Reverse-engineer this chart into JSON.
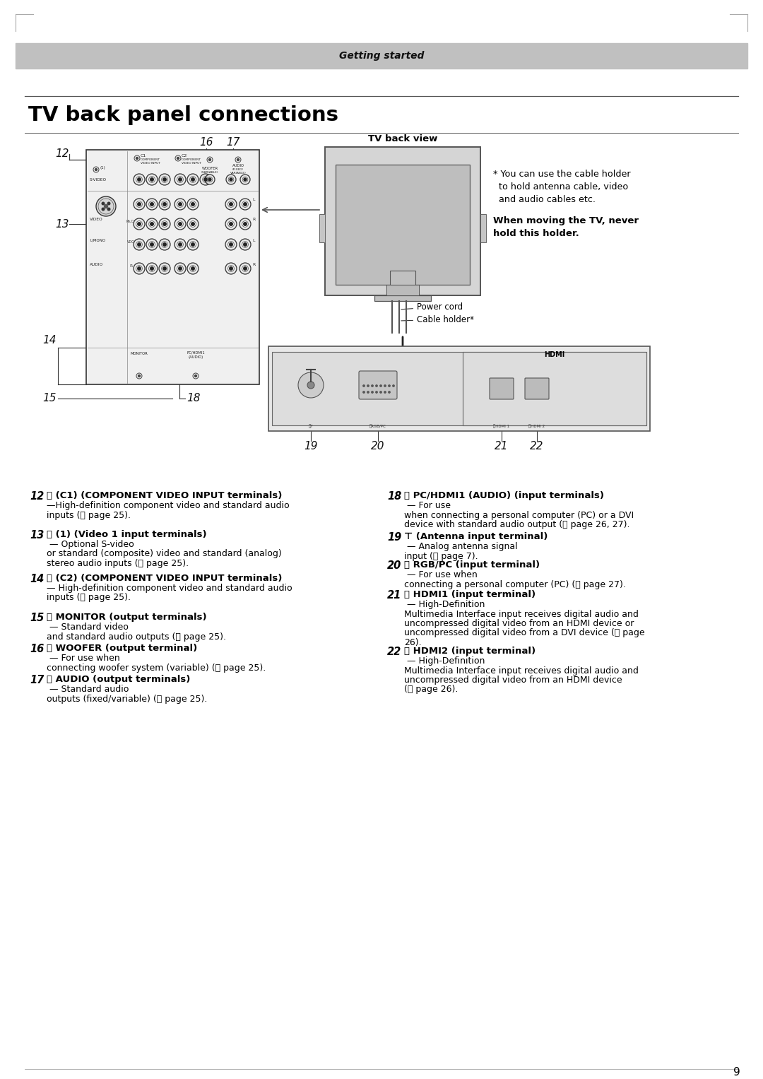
{
  "page_bg": "#ffffff",
  "header_bg": "#b8b8b8",
  "header_text": "Getting started",
  "title": "TV back panel connections",
  "tv_back_view": "TV back view",
  "cable_note_star": "* You can use the cable holder",
  "cable_note_2": "  to hold antenna cable, video",
  "cable_note_3": "  and audio cables etc.",
  "cable_warn_1": "When moving the TV, never",
  "cable_warn_2": "hold this holder.",
  "power_cord": "Power cord",
  "cable_holder": "Cable holder*",
  "page_number": "9",
  "items_left": [
    {
      "num": "12",
      "bold": "(C1) (COMPONENT VIDEO INPUT terminals)",
      "text": "—High-definition component video and standard audio\ninputs (⩲ page 25)."
    },
    {
      "num": "13",
      "bold": "(1) (Video 1 input terminals)",
      "text": " — Optional S-video\nor standard (composite) video and standard (analog)\nstereo audio inputs (⩲ page 25)."
    },
    {
      "num": "14",
      "bold": "(C2) (COMPONENT VIDEO INPUT terminals)",
      "text": "— High-definition component video and standard audio\ninputs (⩲ page 25)."
    },
    {
      "num": "15",
      "bold": "MONITOR (output terminals)",
      "text": " — Standard video\nand standard audio outputs (⩲ page 25)."
    },
    {
      "num": "16",
      "bold": "WOOFER (output terminal)",
      "text": " — For use when\nconnecting woofer system (variable) (⩲ page 25)."
    },
    {
      "num": "17",
      "bold": "AUDIO (output terminals)",
      "text": " — Standard audio\noutputs (fixed/variable) (⩲ page 25)."
    }
  ],
  "items_right": [
    {
      "num": "18",
      "bold": "PC/HDMI1 (AUDIO) (input terminals)",
      "text": " — For use\nwhen connecting a personal computer (PC) or a DVI\ndevice with standard audio output (⩲ page 26, 27)."
    },
    {
      "num": "19",
      "bold": "(Antenna input terminal)",
      "text": " — Analog antenna signal\ninput (⩲ page 7)."
    },
    {
      "num": "20",
      "bold": "RGB/PC (input terminal)",
      "text": " — For use when\nconnecting a personal computer (PC) (⩲ page 27)."
    },
    {
      "num": "21",
      "bold": "HDMI1 (input terminal)",
      "text": " — High-Definition\nMultimedia Interface input receives digital audio and\nuncompressed digital video from an HDMI device or\nuncompressed digital video from a DVI device (⩲ page\n26)."
    },
    {
      "num": "22",
      "bold": "HDMI2 (input terminal)",
      "text": " — High-Definition\nMultimedia Interface input receives digital audio and\nuncompressed digital video from an HDMI device\n(⩲ page 26)."
    }
  ],
  "left_icons": [
    "⍉",
    "⍉",
    "⍉",
    "⭆",
    "⭆",
    "⭆"
  ],
  "right_icons": [
    "⍉",
    "⊤",
    "⍉",
    "⍉",
    "⍉"
  ]
}
